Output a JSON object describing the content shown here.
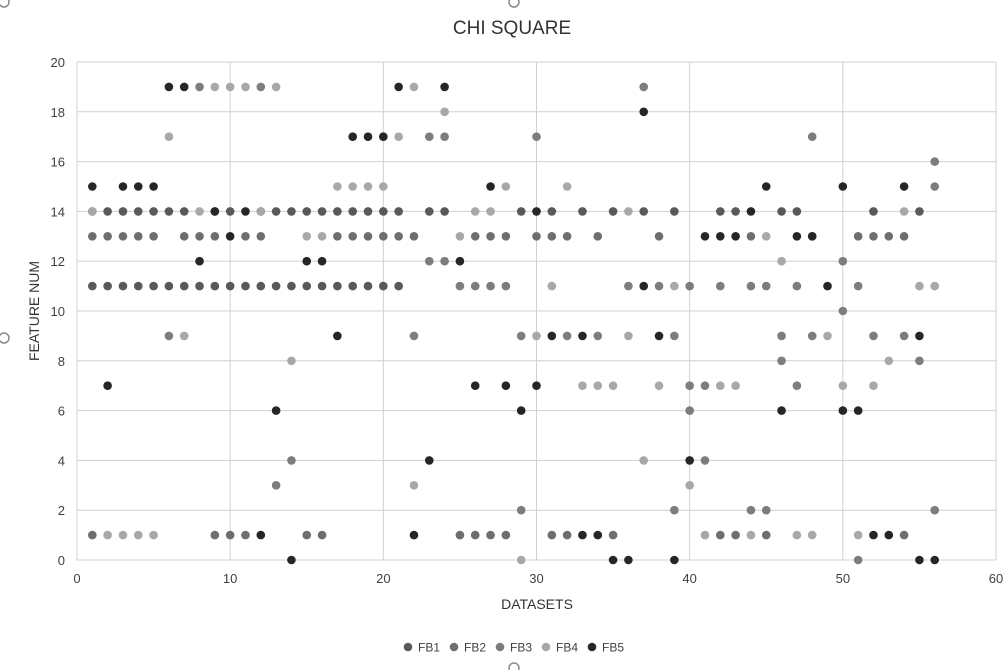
{
  "chart_data": {
    "type": "scatter",
    "title": "CHI SQUARE",
    "xlabel": "DATASETS",
    "ylabel": "FEATURE NUM",
    "xlim": [
      0,
      60
    ],
    "ylim": [
      0,
      20
    ],
    "x_ticks": [
      0,
      10,
      20,
      30,
      40,
      50,
      60
    ],
    "y_ticks": [
      0,
      2,
      4,
      6,
      8,
      10,
      12,
      14,
      16,
      18,
      20
    ],
    "grid": true,
    "legend_position": "bottom",
    "colors": {
      "FB1": "#595959",
      "FB2": "#6e6e6e",
      "FB3": "#7d7d7d",
      "FB4": "#a8a8a8",
      "FB5": "#262626"
    },
    "series": [
      {
        "name": "FB1",
        "points": [
          [
            1,
            11
          ],
          [
            2,
            11
          ],
          [
            3,
            11
          ],
          [
            4,
            11
          ],
          [
            5,
            11
          ],
          [
            6,
            11
          ],
          [
            7,
            11
          ],
          [
            8,
            11
          ],
          [
            9,
            11
          ],
          [
            10,
            11
          ],
          [
            11,
            11
          ],
          [
            12,
            11
          ],
          [
            13,
            11
          ],
          [
            14,
            11
          ],
          [
            15,
            11
          ],
          [
            16,
            11
          ],
          [
            17,
            11
          ],
          [
            18,
            11
          ],
          [
            19,
            11
          ],
          [
            20,
            11
          ],
          [
            21,
            11
          ],
          [
            1,
            14
          ],
          [
            2,
            14
          ],
          [
            3,
            14
          ],
          [
            4,
            14
          ],
          [
            5,
            14
          ],
          [
            6,
            14
          ],
          [
            7,
            14
          ],
          [
            9,
            14
          ],
          [
            10,
            14
          ],
          [
            12,
            14
          ],
          [
            13,
            14
          ],
          [
            14,
            14
          ],
          [
            15,
            14
          ],
          [
            16,
            14
          ],
          [
            17,
            14
          ],
          [
            18,
            14
          ],
          [
            19,
            14
          ],
          [
            20,
            14
          ],
          [
            21,
            14
          ],
          [
            23,
            14
          ],
          [
            24,
            14
          ],
          [
            29,
            14
          ],
          [
            31,
            14
          ],
          [
            33,
            14
          ],
          [
            35,
            14
          ],
          [
            37,
            14
          ],
          [
            39,
            14
          ],
          [
            42,
            14
          ],
          [
            43,
            14
          ],
          [
            46,
            14
          ],
          [
            47,
            14
          ],
          [
            52,
            14
          ],
          [
            55,
            14
          ]
        ]
      },
      {
        "name": "FB2",
        "points": [
          [
            1,
            13
          ],
          [
            2,
            13
          ],
          [
            3,
            13
          ],
          [
            4,
            13
          ],
          [
            5,
            13
          ],
          [
            7,
            13
          ],
          [
            8,
            13
          ],
          [
            9,
            13
          ],
          [
            11,
            13
          ],
          [
            12,
            13
          ],
          [
            17,
            13
          ],
          [
            18,
            13
          ],
          [
            19,
            13
          ],
          [
            20,
            13
          ],
          [
            21,
            13
          ],
          [
            22,
            13
          ],
          [
            26,
            13
          ],
          [
            27,
            13
          ],
          [
            28,
            13
          ],
          [
            30,
            13
          ],
          [
            31,
            13
          ],
          [
            32,
            13
          ],
          [
            34,
            13
          ],
          [
            38,
            13
          ],
          [
            44,
            13
          ],
          [
            48,
            13
          ],
          [
            51,
            13
          ],
          [
            52,
            13
          ],
          [
            53,
            13
          ],
          [
            54,
            13
          ],
          [
            1,
            1
          ],
          [
            9,
            1
          ],
          [
            10,
            1
          ],
          [
            11,
            1
          ],
          [
            15,
            1
          ],
          [
            16,
            1
          ],
          [
            25,
            1
          ],
          [
            26,
            1
          ],
          [
            27,
            1
          ],
          [
            28,
            1
          ],
          [
            31,
            1
          ],
          [
            32,
            1
          ],
          [
            35,
            1
          ],
          [
            42,
            1
          ],
          [
            43,
            1
          ],
          [
            45,
            1
          ],
          [
            54,
            1
          ]
        ]
      },
      {
        "name": "FB3",
        "points": [
          [
            8,
            19
          ],
          [
            12,
            19
          ],
          [
            23,
            17
          ],
          [
            24,
            17
          ],
          [
            30,
            17
          ],
          [
            37,
            19
          ],
          [
            48,
            17
          ],
          [
            56,
            16
          ],
          [
            56,
            15
          ],
          [
            6,
            9
          ],
          [
            22,
            9
          ],
          [
            29,
            9
          ],
          [
            32,
            9
          ],
          [
            34,
            9
          ],
          [
            39,
            9
          ],
          [
            46,
            9
          ],
          [
            48,
            9
          ],
          [
            52,
            9
          ],
          [
            54,
            9
          ],
          [
            23,
            12
          ],
          [
            24,
            12
          ],
          [
            25,
            11
          ],
          [
            26,
            11
          ],
          [
            27,
            11
          ],
          [
            28,
            11
          ],
          [
            36,
            11
          ],
          [
            38,
            11
          ],
          [
            40,
            11
          ],
          [
            42,
            11
          ],
          [
            44,
            11
          ],
          [
            45,
            11
          ],
          [
            47,
            11
          ],
          [
            51,
            11
          ],
          [
            50,
            12
          ],
          [
            50,
            10
          ],
          [
            40,
            7
          ],
          [
            41,
            7
          ],
          [
            47,
            7
          ],
          [
            46,
            8
          ],
          [
            55,
            8
          ],
          [
            40,
            6
          ],
          [
            14,
            4
          ],
          [
            13,
            3
          ],
          [
            29,
            2
          ],
          [
            41,
            4
          ],
          [
            39,
            2
          ],
          [
            44,
            2
          ],
          [
            45,
            2
          ],
          [
            56,
            2
          ],
          [
            51,
            0
          ]
        ]
      },
      {
        "name": "FB4",
        "points": [
          [
            1,
            14
          ],
          [
            8,
            14
          ],
          [
            12,
            14
          ],
          [
            15,
            13
          ],
          [
            16,
            13
          ],
          [
            25,
            13
          ],
          [
            26,
            14
          ],
          [
            27,
            14
          ],
          [
            28,
            15
          ],
          [
            32,
            15
          ],
          [
            36,
            14
          ],
          [
            45,
            13
          ],
          [
            46,
            12
          ],
          [
            54,
            14
          ],
          [
            17,
            15
          ],
          [
            18,
            15
          ],
          [
            19,
            15
          ],
          [
            20,
            15
          ],
          [
            6,
            17
          ],
          [
            21,
            17
          ],
          [
            24,
            18
          ],
          [
            9,
            19
          ],
          [
            10,
            19
          ],
          [
            11,
            19
          ],
          [
            13,
            19
          ],
          [
            22,
            19
          ],
          [
            2,
            1
          ],
          [
            3,
            1
          ],
          [
            4,
            1
          ],
          [
            5,
            1
          ],
          [
            41,
            1
          ],
          [
            44,
            1
          ],
          [
            47,
            1
          ],
          [
            48,
            1
          ],
          [
            51,
            1
          ],
          [
            7,
            9
          ],
          [
            14,
            8
          ],
          [
            30,
            9
          ],
          [
            36,
            9
          ],
          [
            49,
            9
          ],
          [
            53,
            8
          ],
          [
            33,
            7
          ],
          [
            34,
            7
          ],
          [
            35,
            7
          ],
          [
            38,
            7
          ],
          [
            42,
            7
          ],
          [
            43,
            7
          ],
          [
            50,
            7
          ],
          [
            52,
            7
          ],
          [
            31,
            11
          ],
          [
            39,
            11
          ],
          [
            55,
            11
          ],
          [
            56,
            11
          ],
          [
            22,
            3
          ],
          [
            40,
            3
          ],
          [
            37,
            4
          ],
          [
            29,
            0
          ]
        ]
      },
      {
        "name": "FB5",
        "points": [
          [
            1,
            15
          ],
          [
            3,
            15
          ],
          [
            4,
            15
          ],
          [
            5,
            15
          ],
          [
            27,
            15
          ],
          [
            45,
            15
          ],
          [
            50,
            15
          ],
          [
            54,
            15
          ],
          [
            6,
            19
          ],
          [
            7,
            19
          ],
          [
            21,
            19
          ],
          [
            24,
            19
          ],
          [
            18,
            17
          ],
          [
            19,
            17
          ],
          [
            20,
            17
          ],
          [
            37,
            18
          ],
          [
            9,
            14
          ],
          [
            11,
            14
          ],
          [
            30,
            14
          ],
          [
            44,
            14
          ],
          [
            10,
            13
          ],
          [
            41,
            13
          ],
          [
            42,
            13
          ],
          [
            43,
            13
          ],
          [
            47,
            13
          ],
          [
            48,
            13
          ],
          [
            8,
            12
          ],
          [
            15,
            12
          ],
          [
            16,
            12
          ],
          [
            25,
            12
          ],
          [
            37,
            11
          ],
          [
            49,
            11
          ],
          [
            17,
            9
          ],
          [
            31,
            9
          ],
          [
            33,
            9
          ],
          [
            38,
            9
          ],
          [
            55,
            9
          ],
          [
            2,
            7
          ],
          [
            26,
            7
          ],
          [
            28,
            7
          ],
          [
            30,
            7
          ],
          [
            13,
            6
          ],
          [
            29,
            6
          ],
          [
            46,
            6
          ],
          [
            50,
            6
          ],
          [
            51,
            6
          ],
          [
            23,
            4
          ],
          [
            40,
            4
          ],
          [
            12,
            1
          ],
          [
            22,
            1
          ],
          [
            33,
            1
          ],
          [
            34,
            1
          ],
          [
            52,
            1
          ],
          [
            53,
            1
          ],
          [
            14,
            0
          ],
          [
            35,
            0
          ],
          [
            36,
            0
          ],
          [
            39,
            0
          ],
          [
            55,
            0
          ],
          [
            56,
            0
          ]
        ]
      }
    ]
  }
}
